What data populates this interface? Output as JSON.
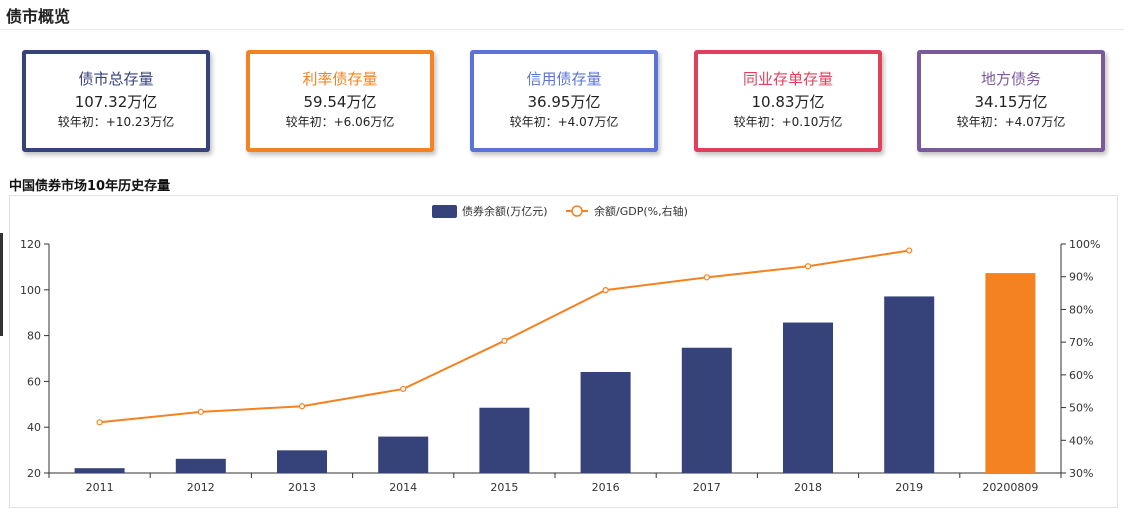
{
  "page": {
    "title": "债市概览"
  },
  "cards": [
    {
      "title": "债市总存量",
      "value": "107.32万亿",
      "delta": "较年初：+10.23万亿",
      "color": "#36427a"
    },
    {
      "title": "利率债存量",
      "value": "59.54万亿",
      "delta": "较年初：+6.06万亿",
      "color": "#f58220"
    },
    {
      "title": "信用债存量",
      "value": "36.95万亿",
      "delta": "较年初：+4.07万亿",
      "color": "#5b73d9"
    },
    {
      "title": "同业存单存量",
      "value": "10.83万亿",
      "delta": "较年初：+0.10万亿",
      "color": "#e0405c"
    },
    {
      "title": "地方债务",
      "value": "34.15万亿",
      "delta": "较年初：+4.07万亿",
      "color": "#7b5a9b"
    }
  ],
  "chart_title": "中国债券市场10年历史存量",
  "chart_data": {
    "type": "bar",
    "categories": [
      "2011",
      "2012",
      "2013",
      "2014",
      "2015",
      "2016",
      "2017",
      "2018",
      "2019",
      "20200809"
    ],
    "series": [
      {
        "name": "债券余额(万亿元)",
        "type": "bar",
        "axis": "left",
        "values": [
          22.1,
          26.2,
          29.9,
          35.9,
          48.5,
          64.1,
          74.7,
          85.7,
          97.1,
          107.3
        ],
        "color": "#36427a",
        "highlight": {
          "category": "20200809",
          "color": "#f58220"
        }
      },
      {
        "name": "余额/GDP(%,右轴)",
        "type": "line",
        "axis": "right",
        "values": [
          45.5,
          48.7,
          50.4,
          55.7,
          70.4,
          85.9,
          89.8,
          93.2,
          98.0,
          null
        ],
        "color": "#f58220"
      }
    ],
    "left_axis": {
      "min": 20,
      "max": 120,
      "ticks": [
        "20",
        "40",
        "60",
        "80",
        "100",
        "120"
      ]
    },
    "right_axis": {
      "min": 30,
      "max": 100,
      "ticks": [
        "30%",
        "40%",
        "50%",
        "60%",
        "70%",
        "80%",
        "90%",
        "100%"
      ]
    },
    "legend_position": "top-center",
    "grid": false
  }
}
